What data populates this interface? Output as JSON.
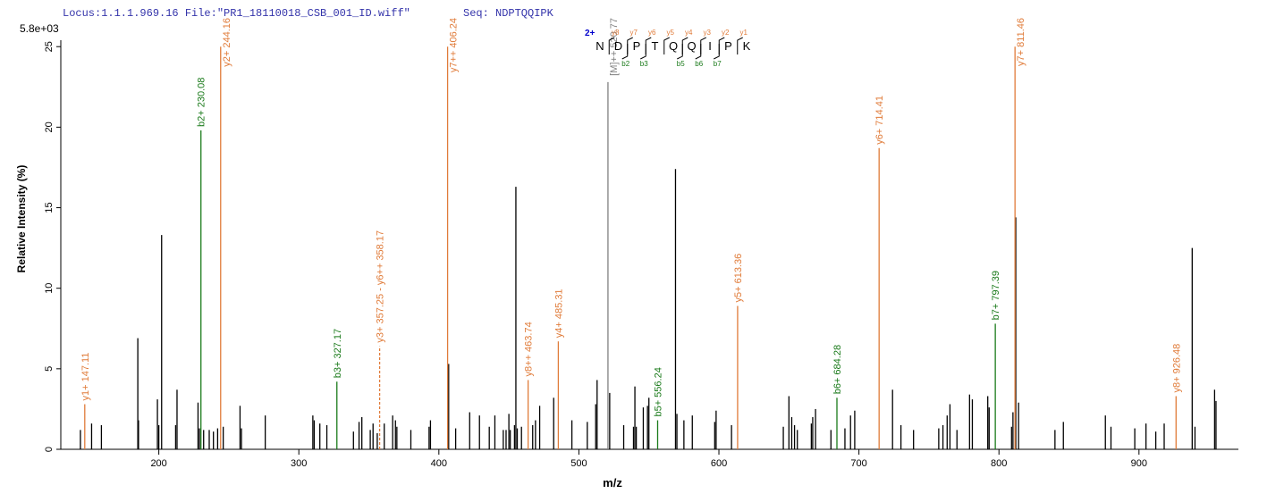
{
  "chart_data": {
    "type": "stem",
    "header": {
      "locus": "Locus:1.1.1.969.16 File:\"PR1_18110018_CSB_001_ID.wiff\"",
      "seq": "Seq: NDPTQQIPK"
    },
    "scale_label": "5.8e+03",
    "x_label": "m/z",
    "y_label": "Relative  Intensity (%)",
    "xlim": [
      130,
      971
    ],
    "ylim": [
      0,
      25.4
    ],
    "xticks": [
      200,
      300,
      400,
      500,
      600,
      700,
      800,
      900
    ],
    "yticks": [
      0,
      5,
      10,
      15,
      20,
      25
    ],
    "peaks": {
      "color": "#000000",
      "x": [
        144,
        152,
        159,
        185,
        185.5,
        199,
        200,
        202,
        212,
        213,
        228,
        229,
        232,
        236,
        239,
        242,
        246,
        258,
        259,
        276,
        310,
        311,
        315,
        320,
        339,
        343,
        345,
        351,
        353,
        356,
        361,
        367,
        369,
        370,
        380,
        393,
        394,
        407,
        412,
        422,
        429,
        436,
        440,
        446,
        448,
        450,
        451,
        454,
        455,
        456,
        459,
        467,
        469,
        472,
        482,
        495,
        506,
        512,
        513,
        522,
        532,
        539,
        540,
        541,
        546,
        549,
        550,
        569,
        570,
        575,
        581,
        597,
        598,
        609,
        646,
        650,
        652,
        654,
        656,
        666,
        667,
        669,
        680,
        690,
        694,
        697,
        724,
        730,
        739,
        757,
        760,
        763,
        765,
        770,
        779,
        781,
        792,
        793,
        809,
        810,
        812,
        814,
        840,
        846,
        876,
        880,
        897,
        905,
        912,
        918,
        938,
        940,
        954,
        955
      ],
      "values": [
        1.2,
        1.6,
        1.5,
        6.9,
        1.8,
        3.1,
        1.5,
        13.3,
        1.5,
        3.7,
        2.9,
        1.3,
        1.2,
        1.2,
        1.1,
        1.3,
        1.4,
        2.7,
        1.3,
        2.1,
        2.1,
        1.8,
        1.6,
        1.5,
        1.1,
        1.7,
        2,
        1.2,
        1.6,
        1,
        1.6,
        2.1,
        1.8,
        1.4,
        1.2,
        1.4,
        1.8,
        5.3,
        1.3,
        2.3,
        2.1,
        1.4,
        2.1,
        1.2,
        1.2,
        2.2,
        1.2,
        1.5,
        16.3,
        1.3,
        1.4,
        1.5,
        1.8,
        2.7,
        3.2,
        1.8,
        1.7,
        2.8,
        4.3,
        3.5,
        1.5,
        1.4,
        3.9,
        1.4,
        2.6,
        2.7,
        3.2,
        17.4,
        2.2,
        1.8,
        2.1,
        1.7,
        2.4,
        1.5,
        1.4,
        3.3,
        2,
        1.5,
        1.2,
        1.6,
        2,
        2.5,
        1.2,
        1.3,
        2.1,
        2.4,
        3.7,
        1.5,
        1.2,
        1.3,
        1.5,
        2.1,
        2.8,
        1.2,
        3.4,
        3.1,
        3.3,
        2.6,
        1.4,
        2.3,
        14.4,
        2.9,
        1.2,
        1.7,
        2.1,
        1.4,
        1.3,
        1.6,
        1.1,
        1.6,
        12.5,
        1.4,
        3.7,
        3.0
      ]
    },
    "annotated": {
      "x": [
        147.11,
        230.08,
        244.16,
        327.17,
        357.7,
        406.24,
        463.74,
        485.31,
        520.77,
        556.24,
        613.36,
        684.28,
        714.41,
        797.39,
        811.46,
        926.48
      ],
      "values": [
        2.8,
        19.8,
        25,
        4.2,
        6.4,
        25,
        4.3,
        6.7,
        22.8,
        1.8,
        8.9,
        3.2,
        18.7,
        7.8,
        25,
        3.3
      ],
      "labels": [
        "y1+ 147.11",
        "b2+ 230.08",
        "y2+ 244.16",
        "b3+ 327.17",
        "y3+ 357.25 - y6++ 358.17",
        "y7++ 406.24",
        "y8++ 463.74",
        "y4+ 485.31",
        "[M]++ 520.77",
        "b5+ 556.24",
        "y5+ 613.36",
        "b6+ 684.28",
        "y6+ 714.41",
        "b7+ 797.39",
        "y7+ 811.46",
        "y8+ 926.48"
      ],
      "colors": [
        "#e07b39",
        "#1a7a1a",
        "#e07b39",
        "#1a7a1a",
        "#e07b39",
        "#e07b39",
        "#e07b39",
        "#e07b39",
        "#808080",
        "#1a7a1a",
        "#e07b39",
        "#1a7a1a",
        "#e07b39",
        "#1a7a1a",
        "#e07b39",
        "#e07b39"
      ],
      "dashed": [
        false,
        false,
        false,
        false,
        true,
        false,
        false,
        false,
        false,
        false,
        false,
        false,
        false,
        false,
        false,
        false
      ]
    },
    "sequence": {
      "charge": "2+",
      "letters": [
        "N",
        "D",
        "P",
        "T",
        "Q",
        "Q",
        "I",
        "P",
        "K"
      ],
      "y_ions": [
        "y8",
        "y7",
        "y6",
        "y5",
        "y4",
        "y3",
        "y2",
        "y1"
      ],
      "b_ions": [
        "b2",
        "b3",
        "b5",
        "b6",
        "b7"
      ]
    }
  }
}
